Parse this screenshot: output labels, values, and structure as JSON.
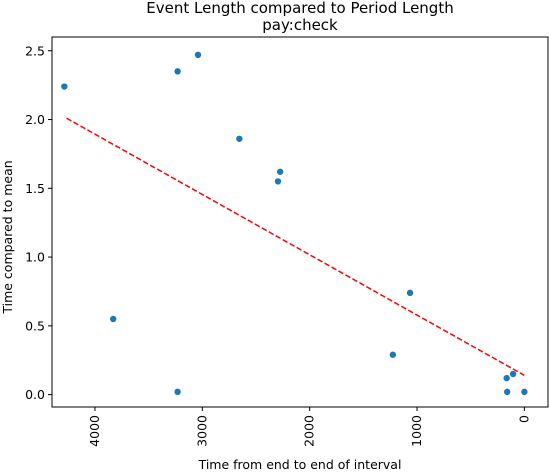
{
  "chart_data": {
    "type": "scatter",
    "title": "Event Length compared to Period Length",
    "subtitle": "pay:check",
    "xlabel": "Time from end to end of interval",
    "ylabel": "Time compared to mean",
    "x_inverted": true,
    "xlim": [
      4400,
      -220
    ],
    "ylim": [
      -0.09,
      2.6
    ],
    "x_ticks": [
      4000,
      3000,
      2000,
      1000,
      0
    ],
    "y_ticks": [
      0.0,
      0.5,
      1.0,
      1.5,
      2.0,
      2.5
    ],
    "x_tick_labels": [
      "4000",
      "3000",
      "2000",
      "1000",
      "0"
    ],
    "y_tick_labels": [
      "0.0",
      "0.5",
      "1.0",
      "1.5",
      "2.0",
      "2.5"
    ],
    "grid": false,
    "series": [
      {
        "kind": "points",
        "color": "#1f77b4",
        "points": [
          {
            "x": 4285,
            "y": 2.24
          },
          {
            "x": 3230,
            "y": 2.35
          },
          {
            "x": 3040,
            "y": 2.47
          },
          {
            "x": 2655,
            "y": 1.86
          },
          {
            "x": 2275,
            "y": 1.62
          },
          {
            "x": 2295,
            "y": 1.55
          },
          {
            "x": 3830,
            "y": 0.55
          },
          {
            "x": 3230,
            "y": 0.02
          },
          {
            "x": 1065,
            "y": 0.74
          },
          {
            "x": 1225,
            "y": 0.29
          },
          {
            "x": 165,
            "y": 0.12
          },
          {
            "x": 105,
            "y": 0.15
          },
          {
            "x": 160,
            "y": 0.02
          },
          {
            "x": 0,
            "y": 0.02
          }
        ]
      },
      {
        "kind": "trend-line",
        "color": "#ff0000",
        "dashed": true,
        "points": [
          {
            "x": 4265,
            "y": 2.01
          },
          {
            "x": 0,
            "y": 0.14
          }
        ]
      }
    ]
  }
}
